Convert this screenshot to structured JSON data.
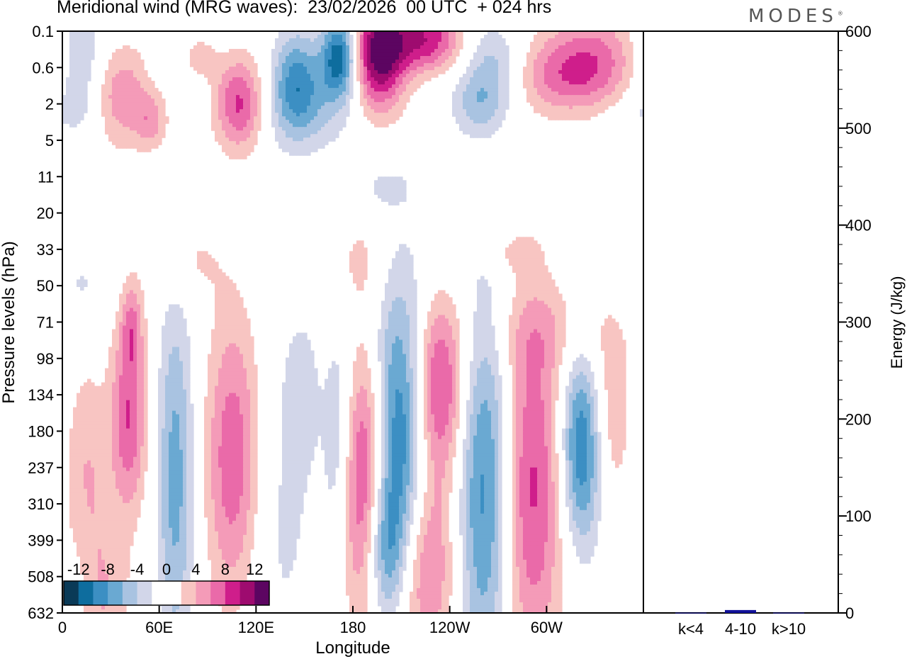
{
  "title": "Meridional wind (MRG waves):  23/02/2026  00 UTC  + 024 hrs",
  "brand": "MODES",
  "brand_mark": "®",
  "colors": {
    "neg": [
      "#0a3a57",
      "#0e6d9e",
      "#3c8fc3",
      "#6aa9d2",
      "#a9c3e1",
      "#d2d6e9"
    ],
    "pos": [
      "#f8c5c2",
      "#f49bb8",
      "#ea6aa9",
      "#cf1e8b",
      "#9e0b6f",
      "#5c0561"
    ],
    "bar": "#12129a"
  },
  "chart_data": [
    {
      "type": "heatmap",
      "title": "Meridional wind (MRG waves)",
      "xlabel": "Longitude",
      "ylabel": "Pressure levels (hPa)",
      "x_ticks": [
        "0",
        "60E",
        "120E",
        "180",
        "120W",
        "60W"
      ],
      "x_tick_degrees": [
        0,
        60,
        120,
        180,
        240,
        300
      ],
      "xlim": [
        0,
        360
      ],
      "y_levels": [
        "0.1",
        "0.6",
        "2",
        "5",
        "11",
        "20",
        "33",
        "50",
        "71",
        "98",
        "134",
        "180",
        "237",
        "310",
        "399",
        "508",
        "632"
      ],
      "colorbar": {
        "labels": [
          "-12",
          "-8",
          "-4",
          "0",
          "4",
          "8",
          "12"
        ],
        "boundaries": [
          -14,
          -12,
          -10,
          -8,
          -6,
          -4,
          -2,
          0,
          2,
          4,
          6,
          8,
          10,
          12,
          14
        ]
      },
      "features": [
        {
          "lon": 188,
          "lev": 12.3,
          "value": 12,
          "wx": 11,
          "wl": 2.6
        },
        {
          "lon": 210,
          "lev": 11.5,
          "value": -14,
          "wx": 14,
          "wl": 3.0
        },
        {
          "lon": 200,
          "lev": 14.2,
          "value": -9,
          "wx": 9,
          "wl": 1.5
        },
        {
          "lon": 232,
          "lev": 9.8,
          "value": 12,
          "wx": 13,
          "wl": 1.8
        },
        {
          "lon": 222,
          "lev": 14.3,
          "value": 11,
          "wx": 16,
          "wl": 2.2
        },
        {
          "lon": 262,
          "lev": 12.8,
          "value": -8,
          "wx": 12,
          "wl": 3.8
        },
        {
          "lon": 290,
          "lev": 12.5,
          "value": 9,
          "wx": 14,
          "wl": 3.5
        },
        {
          "lon": 322,
          "lev": 11.4,
          "value": -11,
          "wx": 9,
          "wl": 1.9
        },
        {
          "lon": 172,
          "lev": 11.3,
          "value": -5,
          "wx": 7,
          "wl": 2.3
        },
        {
          "lon": 148,
          "lev": 9.8,
          "value": -2.6,
          "wx": 8,
          "wl": 1.5
        },
        {
          "lon": 106,
          "lev": 11.8,
          "value": 8,
          "wx": 12,
          "wl": 2.8
        },
        {
          "lon": 70,
          "lev": 12.3,
          "value": -7,
          "wx": 8,
          "wl": 3.5
        },
        {
          "lon": 41,
          "lev": 10.7,
          "value": 8,
          "wx": 8,
          "wl": 1.8
        },
        {
          "lon": 43,
          "lev": 8.1,
          "value": 5,
          "wx": 5,
          "wl": 0.9
        },
        {
          "lon": 15,
          "lev": 13.2,
          "value": 5,
          "wx": 9,
          "wl": 2.6
        },
        {
          "lon": 13,
          "lev": 14.6,
          "value": -2.4,
          "wx": 6,
          "wl": 1.5
        },
        {
          "lon": 30,
          "lev": 15.8,
          "value": 3,
          "wx": 10,
          "wl": 1.5
        },
        {
          "lon": 135,
          "lev": 13.5,
          "value": -2.4,
          "wx": 18,
          "wl": 3.2
        },
        {
          "lon": 338,
          "lev": 10.6,
          "value": 4,
          "wx": 10,
          "wl": 1.8
        },
        {
          "lon": 305,
          "lev": 8.3,
          "value": 2.4,
          "wx": 30,
          "wl": 0.9
        },
        {
          "lon": 245,
          "lev": 11.8,
          "value": -2.4,
          "wx": 25,
          "wl": 3.2
        },
        {
          "lon": 196,
          "lev": 0.65,
          "value": 13,
          "wx": 12,
          "wl": 1.1
        },
        {
          "lon": 226,
          "lev": 0.2,
          "value": 12,
          "wx": 18,
          "wl": 0.6
        },
        {
          "lon": 172,
          "lev": 0.7,
          "value": -12,
          "wx": 8,
          "wl": 0.8
        },
        {
          "lon": 145,
          "lev": 1.3,
          "value": -7,
          "wx": 10,
          "wl": 1.0
        },
        {
          "lon": 150,
          "lev": 2.1,
          "value": -4,
          "wx": 22,
          "wl": 0.9
        },
        {
          "lon": 110,
          "lev": 2.0,
          "value": 9,
          "wx": 11,
          "wl": 0.9
        },
        {
          "lon": 35,
          "lev": 1.8,
          "value": 6,
          "wx": 15,
          "wl": 1.0
        },
        {
          "lon": 12,
          "lev": 0.9,
          "value": -5,
          "wx": 11,
          "wl": 1.3
        },
        {
          "lon": 55,
          "lev": 2.5,
          "value": 4,
          "wx": 7,
          "wl": 0.5
        },
        {
          "lon": 265,
          "lev": 1.0,
          "value": -5,
          "wx": 14,
          "wl": 0.8
        },
        {
          "lon": 258,
          "lev": 2.1,
          "value": -4,
          "wx": 12,
          "wl": 0.6
        },
        {
          "lon": 328,
          "lev": 1.1,
          "value": 8,
          "wx": 20,
          "wl": 1.1
        },
        {
          "lon": 300,
          "lev": 1.3,
          "value": 4,
          "wx": 18,
          "wl": 0.8
        },
        {
          "lon": 340,
          "lev": 2.3,
          "value": -3,
          "wx": 30,
          "wl": 0.7
        },
        {
          "lon": 85,
          "lev": 0.7,
          "value": 3,
          "wx": 7,
          "wl": 0.4
        },
        {
          "lon": 62,
          "lev": 0.7,
          "value": -2.6,
          "wx": 6,
          "wl": 0.4
        },
        {
          "lon": 78,
          "lev": 6.3,
          "value": 2.4,
          "wx": 15,
          "wl": 0.8
        },
        {
          "lon": 185,
          "lev": 6.3,
          "value": 2.4,
          "wx": 12,
          "wl": 0.9
        },
        {
          "lon": 280,
          "lev": 6.1,
          "value": 2.4,
          "wx": 10,
          "wl": 0.4
        },
        {
          "lon": 12,
          "lev": 7.0,
          "value": -2.4,
          "wx": 12,
          "wl": 0.7
        },
        {
          "lon": 350,
          "lev": 3.2,
          "value": 2.4,
          "wx": 18,
          "wl": 0.4
        },
        {
          "lon": 200,
          "lev": 4.3,
          "value": -2.4,
          "wx": 12,
          "wl": 0.4
        },
        {
          "lon": 230,
          "lev": 0.2,
          "value": -2.6,
          "wx": 25,
          "wl": 0.4
        }
      ]
    },
    {
      "type": "bar",
      "ylabel": "Energy (J/kg)",
      "categories": [
        "k<4",
        "4-10",
        "k>10"
      ],
      "values": [
        0.3,
        3,
        0.3
      ],
      "ylim": [
        0,
        600
      ],
      "y_ticks": [
        "0",
        "100",
        "200",
        "300",
        "400",
        "500",
        "600"
      ]
    }
  ]
}
